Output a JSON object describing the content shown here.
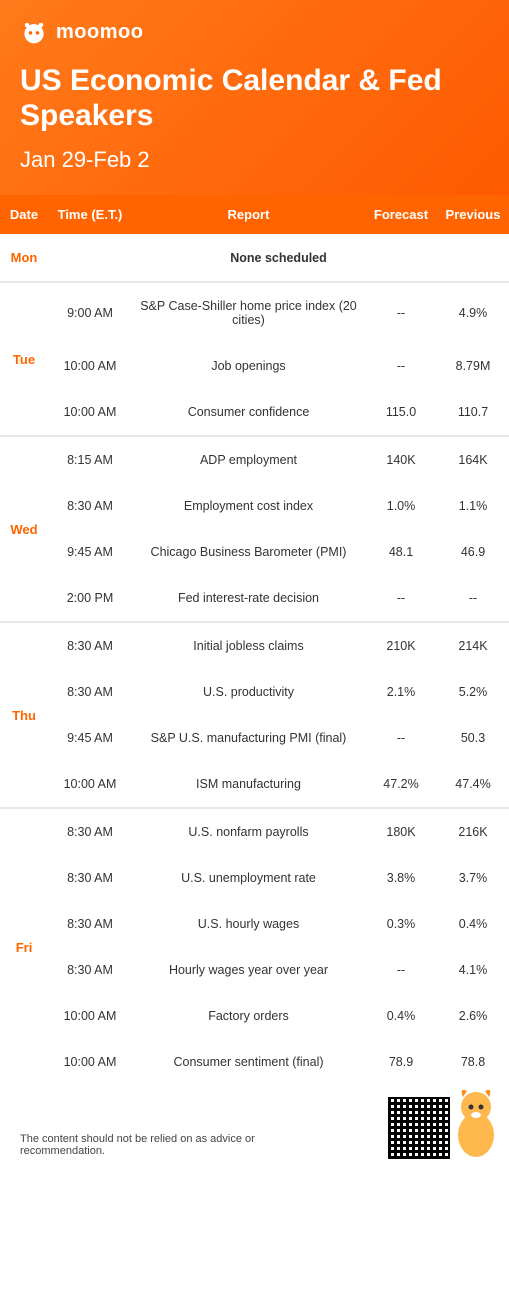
{
  "brand": {
    "name": "moomoo"
  },
  "header": {
    "title": "US Economic Calendar & Fed Speakers",
    "date_range": "Jan 29-Feb 2"
  },
  "colors": {
    "accent": "#ff6400",
    "header_grad_a": "#ff7a1a",
    "header_grad_b": "#ff5a00",
    "text": "#333333",
    "separator": "#e8e8e8",
    "white": "#ffffff"
  },
  "table": {
    "columns": [
      "Date",
      "Time (E.T.)",
      "Report",
      "Forecast",
      "Previous"
    ],
    "days": [
      {
        "day": "Mon",
        "rows": [
          {
            "time": "",
            "report": "None scheduled",
            "forecast": "",
            "previous": "",
            "none": true
          }
        ]
      },
      {
        "day": "Tue",
        "rows": [
          {
            "time": "9:00 AM",
            "report": "S&P Case-Shiller home price index (20 cities)",
            "forecast": "--",
            "previous": "4.9%"
          },
          {
            "time": "10:00 AM",
            "report": "Job openings",
            "forecast": "--",
            "previous": "8.79M"
          },
          {
            "time": "10:00 AM",
            "report": "Consumer confidence",
            "forecast": "115.0",
            "previous": "110.7"
          }
        ]
      },
      {
        "day": "Wed",
        "rows": [
          {
            "time": "8:15 AM",
            "report": "ADP employment",
            "forecast": "140K",
            "previous": "164K"
          },
          {
            "time": "8:30 AM",
            "report": "Employment cost index",
            "forecast": "1.0%",
            "previous": "1.1%"
          },
          {
            "time": "9:45 AM",
            "report": "Chicago Business Barometer (PMI)",
            "forecast": "48.1",
            "previous": "46.9"
          },
          {
            "time": "2:00 PM",
            "report": "Fed interest-rate decision",
            "forecast": "--",
            "previous": "--"
          }
        ]
      },
      {
        "day": "Thu",
        "rows": [
          {
            "time": "8:30 AM",
            "report": "Initial jobless claims",
            "forecast": "210K",
            "previous": "214K"
          },
          {
            "time": "8:30 AM",
            "report": "U.S. productivity",
            "forecast": "2.1%",
            "previous": "5.2%"
          },
          {
            "time": "9:45 AM",
            "report": "S&P U.S. manufacturing PMI (final)",
            "forecast": "--",
            "previous": "50.3"
          },
          {
            "time": "10:00 AM",
            "report": "ISM manufacturing",
            "forecast": "47.2%",
            "previous": "47.4%"
          }
        ]
      },
      {
        "day": "Fri",
        "rows": [
          {
            "time": "8:30 AM",
            "report": "U.S. nonfarm payrolls",
            "forecast": "180K",
            "previous": "216K"
          },
          {
            "time": "8:30 AM",
            "report": "U.S. unemployment rate",
            "forecast": "3.8%",
            "previous": "3.7%"
          },
          {
            "time": "8:30 AM",
            "report": "U.S. hourly wages",
            "forecast": "0.3%",
            "previous": "0.4%"
          },
          {
            "time": "8:30 AM",
            "report": "Hourly wages year over year",
            "forecast": "--",
            "previous": "4.1%"
          },
          {
            "time": "10:00 AM",
            "report": "Factory orders",
            "forecast": "0.4%",
            "previous": "2.6%"
          },
          {
            "time": "10:00 AM",
            "report": "Consumer sentiment (final)",
            "forecast": "78.9",
            "previous": "78.8"
          }
        ]
      }
    ]
  },
  "footer": {
    "disclaimer": "The content should not be relied on as advice or recommendation."
  }
}
